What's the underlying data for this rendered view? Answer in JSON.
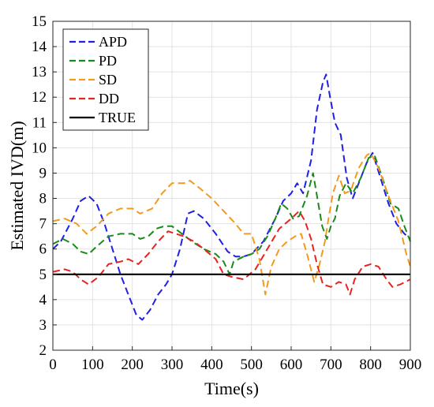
{
  "chart_data": {
    "type": "line",
    "xlabel": "Time(s)",
    "ylabel": "Estimated IVD(m)",
    "xlim": [
      0,
      900
    ],
    "ylim": [
      2,
      15
    ],
    "xticks": [
      "0",
      "100",
      "200",
      "300",
      "400",
      "500",
      "600",
      "700",
      "800",
      "900"
    ],
    "yticks": [
      "2",
      "3",
      "4",
      "5",
      "6",
      "7",
      "8",
      "9",
      "10",
      "11",
      "12",
      "13",
      "14",
      "15"
    ],
    "grid": true,
    "legend_position": "top-left",
    "series": [
      {
        "name": "APD",
        "color": "#1f1fe6",
        "style": "dashed",
        "points": [
          [
            0,
            6.0
          ],
          [
            20,
            6.3
          ],
          [
            50,
            7.2
          ],
          [
            70,
            7.9
          ],
          [
            90,
            8.1
          ],
          [
            110,
            7.8
          ],
          [
            130,
            7.0
          ],
          [
            150,
            6.0
          ],
          [
            170,
            5.0
          ],
          [
            190,
            4.2
          ],
          [
            210,
            3.4
          ],
          [
            225,
            3.2
          ],
          [
            245,
            3.6
          ],
          [
            265,
            4.2
          ],
          [
            285,
            4.6
          ],
          [
            300,
            5.0
          ],
          [
            320,
            6.0
          ],
          [
            340,
            7.4
          ],
          [
            355,
            7.5
          ],
          [
            380,
            7.2
          ],
          [
            410,
            6.6
          ],
          [
            440,
            5.9
          ],
          [
            460,
            5.7
          ],
          [
            480,
            5.7
          ],
          [
            500,
            5.8
          ],
          [
            530,
            6.3
          ],
          [
            560,
            7.2
          ],
          [
            580,
            7.9
          ],
          [
            600,
            8.2
          ],
          [
            615,
            8.6
          ],
          [
            630,
            8.2
          ],
          [
            650,
            9.5
          ],
          [
            665,
            11.5
          ],
          [
            680,
            12.6
          ],
          [
            688,
            12.9
          ],
          [
            698,
            12.0
          ],
          [
            710,
            11.0
          ],
          [
            725,
            10.5
          ],
          [
            740,
            8.8
          ],
          [
            755,
            8.0
          ],
          [
            770,
            8.6
          ],
          [
            790,
            9.4
          ],
          [
            805,
            9.8
          ],
          [
            825,
            8.8
          ],
          [
            845,
            7.8
          ],
          [
            865,
            7.0
          ],
          [
            885,
            6.6
          ],
          [
            900,
            6.4
          ]
        ]
      },
      {
        "name": "PD",
        "color": "#1a8a1a",
        "style": "dashed",
        "points": [
          [
            0,
            6.2
          ],
          [
            25,
            6.4
          ],
          [
            50,
            6.2
          ],
          [
            70,
            5.9
          ],
          [
            90,
            5.8
          ],
          [
            110,
            6.1
          ],
          [
            140,
            6.5
          ],
          [
            170,
            6.6
          ],
          [
            200,
            6.6
          ],
          [
            220,
            6.4
          ],
          [
            240,
            6.5
          ],
          [
            260,
            6.8
          ],
          [
            280,
            6.9
          ],
          [
            300,
            6.9
          ],
          [
            325,
            6.6
          ],
          [
            350,
            6.3
          ],
          [
            380,
            6.0
          ],
          [
            410,
            5.8
          ],
          [
            430,
            5.5
          ],
          [
            445,
            5.0
          ],
          [
            455,
            5.5
          ],
          [
            480,
            5.7
          ],
          [
            500,
            5.8
          ],
          [
            520,
            6.0
          ],
          [
            540,
            6.5
          ],
          [
            560,
            7.2
          ],
          [
            575,
            7.8
          ],
          [
            590,
            7.6
          ],
          [
            605,
            7.2
          ],
          [
            620,
            7.3
          ],
          [
            640,
            8.1
          ],
          [
            655,
            9.0
          ],
          [
            665,
            8.1
          ],
          [
            678,
            6.9
          ],
          [
            690,
            6.4
          ],
          [
            700,
            6.9
          ],
          [
            710,
            7.2
          ],
          [
            722,
            8.1
          ],
          [
            738,
            8.6
          ],
          [
            755,
            8.2
          ],
          [
            775,
            8.8
          ],
          [
            795,
            9.6
          ],
          [
            810,
            9.7
          ],
          [
            830,
            8.8
          ],
          [
            850,
            7.8
          ],
          [
            870,
            7.6
          ],
          [
            885,
            6.9
          ],
          [
            900,
            6.3
          ]
        ]
      },
      {
        "name": "SD",
        "color": "#f39a1c",
        "style": "dashed",
        "points": [
          [
            0,
            7.1
          ],
          [
            30,
            7.2
          ],
          [
            60,
            7.0
          ],
          [
            85,
            6.6
          ],
          [
            110,
            6.9
          ],
          [
            140,
            7.4
          ],
          [
            170,
            7.6
          ],
          [
            200,
            7.6
          ],
          [
            220,
            7.4
          ],
          [
            250,
            7.6
          ],
          [
            275,
            8.2
          ],
          [
            300,
            8.6
          ],
          [
            330,
            8.6
          ],
          [
            345,
            8.7
          ],
          [
            370,
            8.4
          ],
          [
            400,
            8.0
          ],
          [
            430,
            7.5
          ],
          [
            460,
            7.0
          ],
          [
            480,
            6.6
          ],
          [
            500,
            6.6
          ],
          [
            520,
            5.6
          ],
          [
            535,
            4.2
          ],
          [
            550,
            5.3
          ],
          [
            570,
            6.0
          ],
          [
            590,
            6.3
          ],
          [
            610,
            6.5
          ],
          [
            625,
            6.6
          ],
          [
            640,
            5.8
          ],
          [
            658,
            4.7
          ],
          [
            670,
            5.3
          ],
          [
            685,
            6.3
          ],
          [
            695,
            7.3
          ],
          [
            705,
            8.2
          ],
          [
            720,
            8.9
          ],
          [
            735,
            8.2
          ],
          [
            750,
            8.3
          ],
          [
            770,
            9.2
          ],
          [
            790,
            9.7
          ],
          [
            800,
            9.8
          ],
          [
            820,
            9.2
          ],
          [
            845,
            8.1
          ],
          [
            870,
            7.1
          ],
          [
            890,
            5.8
          ],
          [
            900,
            5.3
          ]
        ]
      },
      {
        "name": "DD",
        "color": "#e52421",
        "style": "dashed",
        "points": [
          [
            0,
            5.1
          ],
          [
            30,
            5.2
          ],
          [
            50,
            5.1
          ],
          [
            70,
            4.8
          ],
          [
            90,
            4.6
          ],
          [
            115,
            4.9
          ],
          [
            140,
            5.4
          ],
          [
            170,
            5.5
          ],
          [
            190,
            5.6
          ],
          [
            215,
            5.4
          ],
          [
            240,
            5.8
          ],
          [
            265,
            6.3
          ],
          [
            290,
            6.7
          ],
          [
            310,
            6.6
          ],
          [
            330,
            6.5
          ],
          [
            355,
            6.3
          ],
          [
            380,
            6.0
          ],
          [
            410,
            5.6
          ],
          [
            430,
            5.0
          ],
          [
            450,
            4.9
          ],
          [
            480,
            4.8
          ],
          [
            510,
            5.2
          ],
          [
            540,
            6.0
          ],
          [
            570,
            6.8
          ],
          [
            600,
            7.2
          ],
          [
            620,
            7.5
          ],
          [
            635,
            7.1
          ],
          [
            650,
            6.4
          ],
          [
            665,
            5.4
          ],
          [
            680,
            4.6
          ],
          [
            700,
            4.5
          ],
          [
            720,
            4.7
          ],
          [
            738,
            4.6
          ],
          [
            748,
            4.2
          ],
          [
            760,
            4.8
          ],
          [
            780,
            5.3
          ],
          [
            800,
            5.4
          ],
          [
            820,
            5.3
          ],
          [
            840,
            4.8
          ],
          [
            855,
            4.5
          ],
          [
            875,
            4.6
          ],
          [
            900,
            4.8
          ]
        ]
      },
      {
        "name": "TRUE",
        "color": "#000000",
        "style": "solid",
        "points": [
          [
            0,
            5
          ],
          [
            900,
            5
          ]
        ]
      }
    ]
  }
}
